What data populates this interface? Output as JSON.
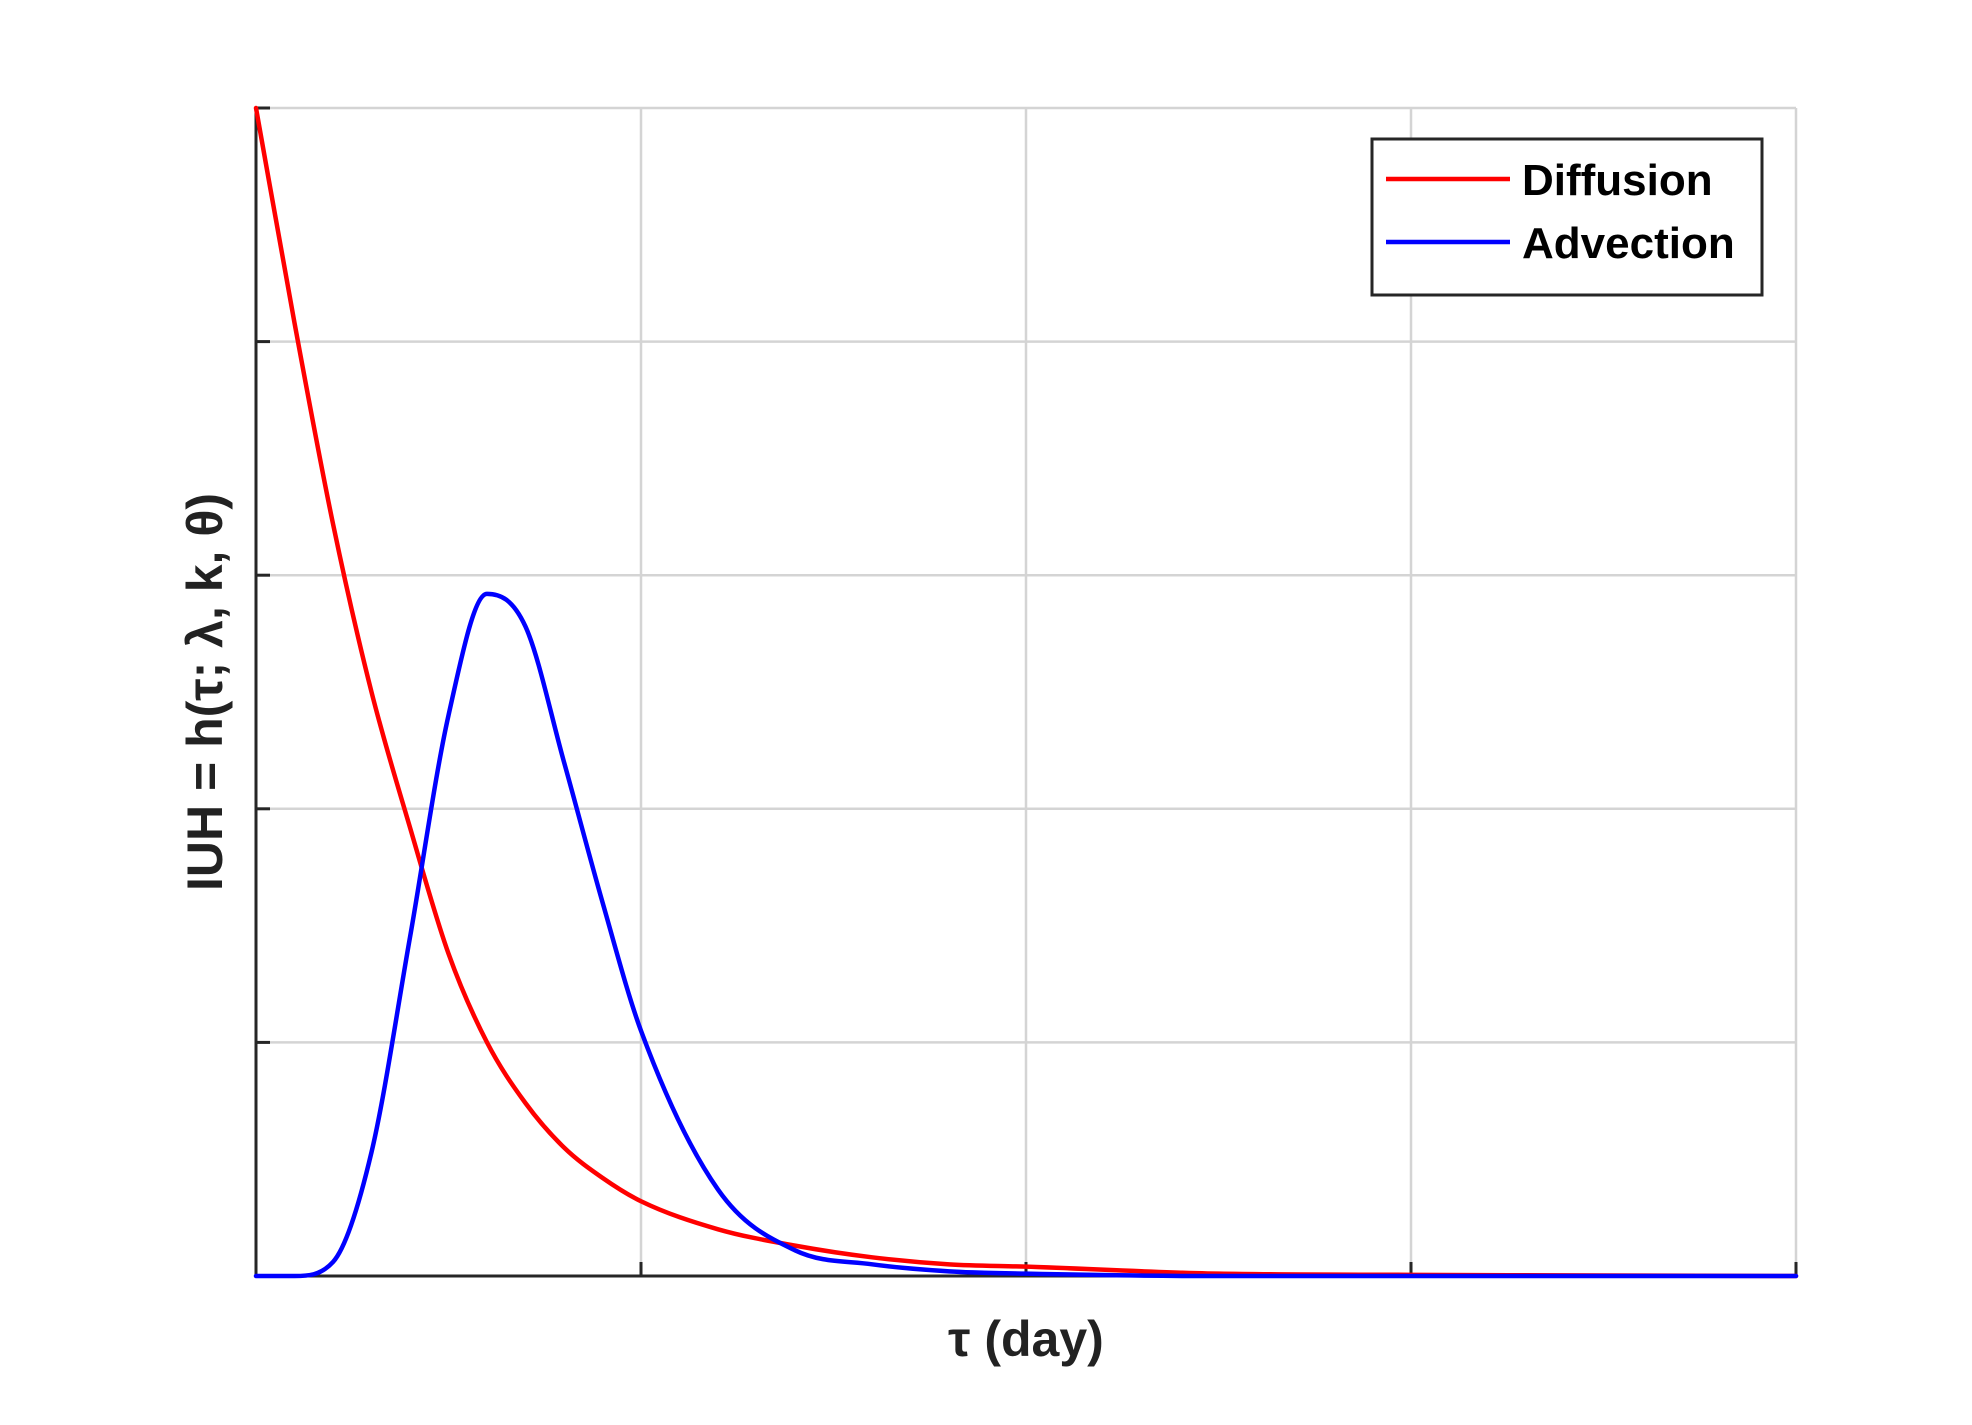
{
  "chart_data": {
    "type": "line",
    "title": "",
    "xlabel": "τ (day)",
    "ylabel": "IUH = h(τ; λ, k, θ)",
    "xlim": [
      0,
      4
    ],
    "ylim": [
      0,
      5
    ],
    "xticks": [
      0,
      1,
      2,
      3,
      4
    ],
    "yticks": [
      0,
      1,
      2,
      3,
      4,
      5
    ],
    "grid": true,
    "tick_labels_shown": false,
    "legend_position": "top-right",
    "series": [
      {
        "name": "Diffusion",
        "color": "#ff0000",
        "x": [
          0,
          0.1,
          0.2,
          0.3,
          0.4,
          0.5,
          0.6,
          0.7,
          0.8,
          0.9,
          1.0,
          1.2,
          1.4,
          1.6,
          1.8,
          2.0,
          2.5,
          3.0,
          3.5,
          4.0
        ],
        "y": [
          5.0,
          4.08,
          3.22,
          2.5,
          1.92,
          1.38,
          1.0,
          0.74,
          0.55,
          0.42,
          0.32,
          0.2,
          0.13,
          0.08,
          0.05,
          0.04,
          0.01,
          0.005,
          0.002,
          0.0
        ]
      },
      {
        "name": "Advection",
        "color": "#0000ff",
        "x": [
          0,
          0.1,
          0.2,
          0.3,
          0.4,
          0.5,
          0.6,
          0.7,
          0.8,
          0.9,
          1.0,
          1.2,
          1.4,
          1.6,
          1.8,
          2.0,
          2.5,
          3.0,
          3.5,
          4.0
        ],
        "y": [
          0.0,
          0.0,
          0.06,
          0.53,
          1.45,
          2.4,
          2.92,
          2.78,
          2.2,
          1.6,
          1.05,
          0.37,
          0.11,
          0.05,
          0.02,
          0.01,
          0.0,
          0.0,
          0.0,
          0.0
        ]
      }
    ]
  }
}
